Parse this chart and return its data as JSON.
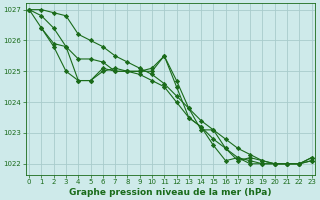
{
  "title": "Graphe pression niveau de la mer (hPa)",
  "series": [
    {
      "name": "line1_straight",
      "x": [
        0,
        1,
        2,
        3,
        4,
        5,
        6,
        7,
        8,
        9,
        10,
        11,
        12,
        13,
        14,
        15,
        16,
        17,
        18,
        19,
        20,
        21,
        22,
        23
      ],
      "y": [
        1027.0,
        1027.0,
        1026.9,
        1026.8,
        1026.2,
        1026.0,
        1025.8,
        1025.5,
        1025.3,
        1025.1,
        1024.9,
        1024.6,
        1024.2,
        1023.8,
        1023.4,
        1023.1,
        1022.8,
        1022.5,
        1022.3,
        1022.1,
        1022.0,
        1022.0,
        1022.0,
        1022.1
      ],
      "marker": "D",
      "markersize": 2.2,
      "lw": 0.8
    },
    {
      "name": "line2_wiggly",
      "x": [
        1,
        2,
        3,
        4,
        5,
        6,
        7,
        8,
        9,
        10,
        11,
        12,
        13,
        14,
        15,
        16,
        17,
        18,
        19,
        20,
        21,
        22,
        23
      ],
      "y": [
        1026.4,
        1025.8,
        1025.0,
        1024.7,
        1024.7,
        1025.1,
        1025.0,
        1025.0,
        1025.0,
        1025.1,
        1025.5,
        1024.7,
        1023.8,
        1023.1,
        1023.1,
        1022.5,
        1022.1,
        1022.2,
        1022.1,
        1022.0,
        1022.0,
        1022.0,
        1022.1
      ],
      "marker": "D",
      "markersize": 2.2,
      "lw": 0.8
    },
    {
      "name": "line3_wiggly2",
      "x": [
        0,
        1,
        2,
        3,
        4,
        5,
        6,
        7,
        8,
        9,
        10,
        11,
        12,
        13,
        14,
        15,
        16,
        17,
        18,
        19,
        20,
        21,
        22,
        23
      ],
      "y": [
        1027.0,
        1026.4,
        1025.9,
        1025.8,
        1024.7,
        1024.7,
        1025.0,
        1025.1,
        1025.0,
        1025.0,
        1025.0,
        1025.5,
        1024.5,
        1023.5,
        1023.2,
        1022.6,
        1022.1,
        1022.2,
        1022.1,
        1022.0,
        1022.0,
        1022.0,
        1022.0,
        1022.2
      ],
      "marker": "D",
      "markersize": 2.2,
      "lw": 0.8
    },
    {
      "name": "line4_straight2",
      "x": [
        0,
        1,
        2,
        3,
        4,
        5,
        6,
        7,
        8,
        9,
        10,
        11,
        12,
        13,
        14,
        15,
        16,
        17,
        18,
        19,
        20,
        21,
        22,
        23
      ],
      "y": [
        1027.0,
        1026.8,
        1026.4,
        1025.8,
        1025.4,
        1025.4,
        1025.3,
        1025.0,
        1025.0,
        1024.9,
        1024.7,
        1024.5,
        1024.0,
        1023.5,
        1023.2,
        1022.8,
        1022.5,
        1022.2,
        1022.0,
        1022.0,
        1022.0,
        1022.0,
        1022.0,
        1022.2
      ],
      "marker": "D",
      "markersize": 2.2,
      "lw": 0.8
    }
  ],
  "line_color": "#1a6b1a",
  "bg_color": "#ceeaea",
  "grid_color": "#a8cccc",
  "ylim": [
    1021.65,
    1027.2
  ],
  "yticks": [
    1022,
    1023,
    1024,
    1025,
    1026,
    1027
  ],
  "xlim": [
    -0.3,
    23.3
  ],
  "xticks": [
    0,
    1,
    2,
    3,
    4,
    5,
    6,
    7,
    8,
    9,
    10,
    11,
    12,
    13,
    14,
    15,
    16,
    17,
    18,
    19,
    20,
    21,
    22,
    23
  ],
  "tick_fontsize": 5.0,
  "title_fontsize": 6.5,
  "title_color": "#1a6b1a",
  "tick_color": "#1a6b1a"
}
